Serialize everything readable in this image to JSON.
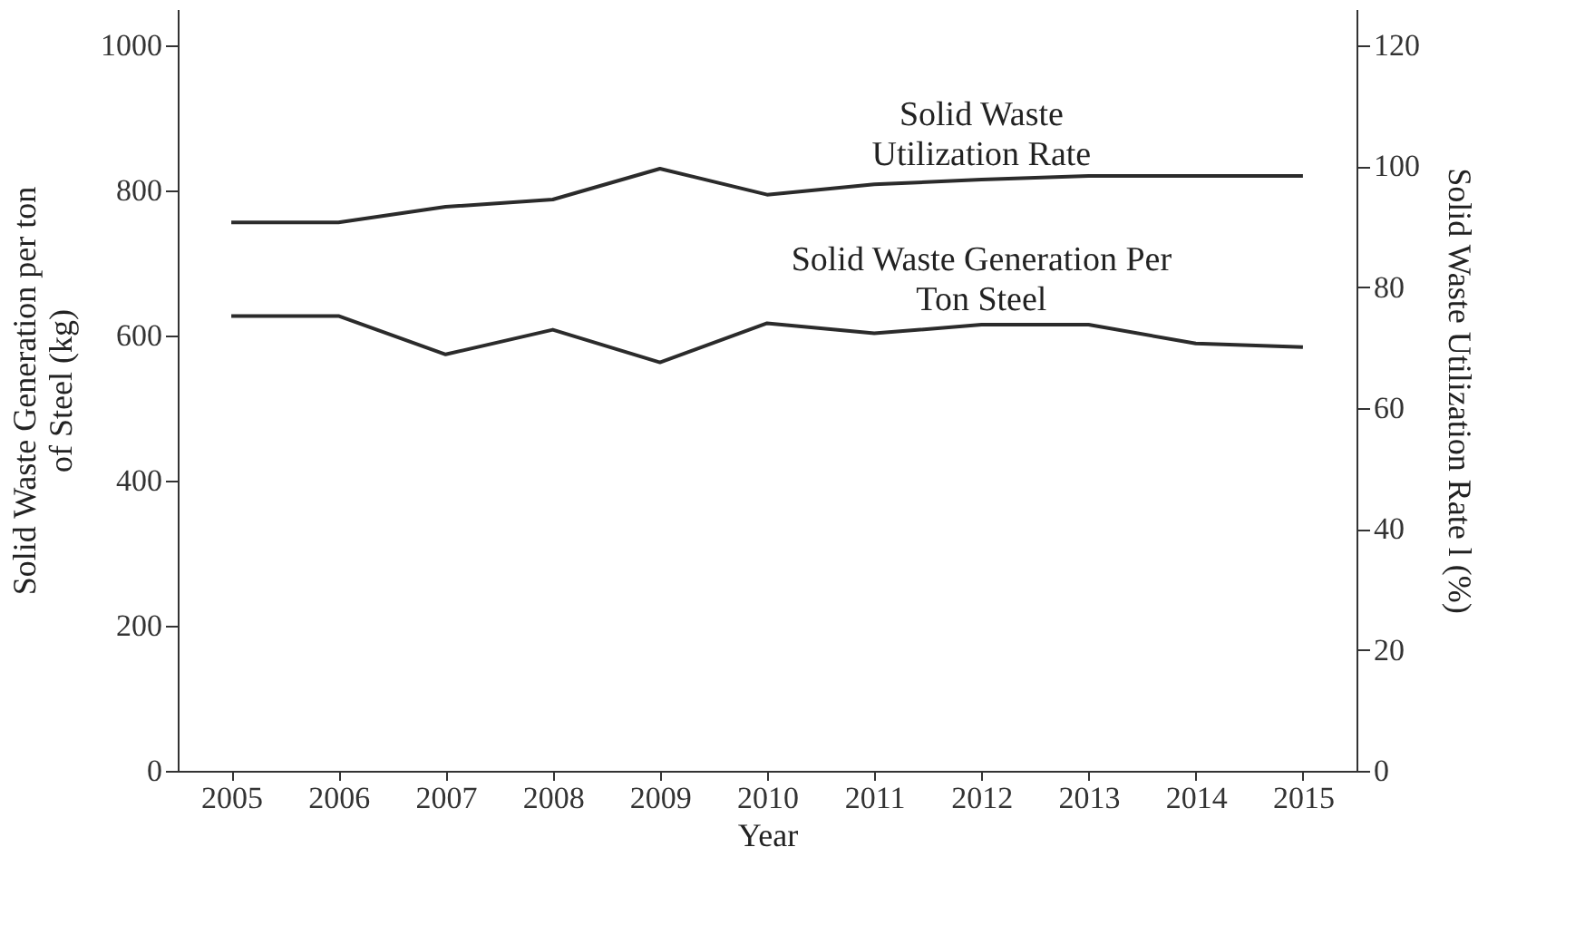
{
  "chart_data": {
    "type": "line",
    "xlabel": "Year",
    "ylabel": "Solid Waste Generation per ton\nof Steel (kg)",
    "y2label": "Solid Waste Utilization Rate l (%)",
    "categories": [
      "2005",
      "2006",
      "2007",
      "2008",
      "2009",
      "2010",
      "2011",
      "2012",
      "2013",
      "2014",
      "2015"
    ],
    "series": [
      {
        "name": "Solid Waste Generation Per\nTon Steel",
        "color": "#2b2b2b",
        "values": [
          627,
          627,
          574,
          608,
          563,
          617,
          603,
          615,
          615,
          589,
          584
        ]
      },
      {
        "name": "Solid Waste\nUtilization Rate",
        "color": "#2b2b2b",
        "axis": "y2",
        "values": [
          90.7,
          90.7,
          93.3,
          94.5,
          99.6,
          95.3,
          97.0,
          97.8,
          98.4,
          98.4,
          98.4
        ]
      }
    ],
    "ylim": [
      0,
      1050
    ],
    "yticks": [
      0,
      200,
      400,
      600,
      800,
      1000
    ],
    "y2lim": [
      0,
      126
    ],
    "y2ticks": [
      0,
      20,
      40,
      60,
      80,
      100,
      120
    ],
    "grid": false,
    "marker": "none",
    "line_style": "solid"
  }
}
